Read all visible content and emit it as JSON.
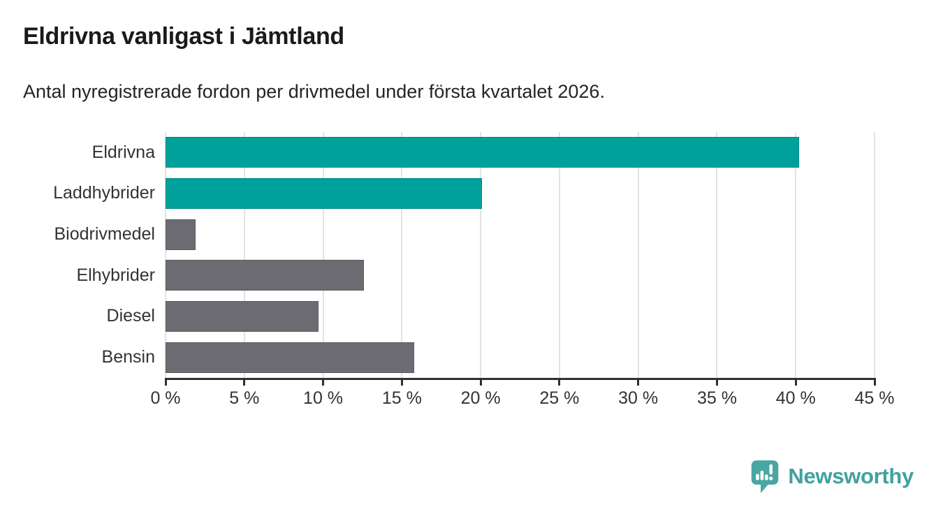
{
  "header": {
    "title": "Eldrivna vanligast i Jämtland",
    "subtitle": "Antal nyregistrerade fordon per drivmedel under första kvartalet 2026."
  },
  "chart_data": {
    "type": "bar",
    "orientation": "horizontal",
    "title": "Eldrivna vanligast i Jämtland",
    "subtitle": "Antal nyregistrerade fordon per drivmedel under första kvartalet 2026.",
    "categories": [
      "Eldrivna",
      "Laddhybrider",
      "Biodrivmedel",
      "Elhybrider",
      "Diesel",
      "Bensin"
    ],
    "values": [
      40.2,
      20.1,
      1.9,
      12.6,
      9.7,
      15.8
    ],
    "unit": "%",
    "bar_colors": [
      "#00a19a",
      "#00a19a",
      "#6c6b71",
      "#6c6b71",
      "#6c6b71",
      "#6c6b71"
    ],
    "highlight_color": "#00a19a",
    "default_color": "#6c6b71",
    "xlabel": "",
    "ylabel": "",
    "xlim": [
      0,
      45
    ],
    "x_ticks": [
      0,
      5,
      10,
      15,
      20,
      25,
      30,
      35,
      40,
      45
    ],
    "x_tick_labels": [
      "0 %",
      "5 %",
      "10 %",
      "15 %",
      "20 %",
      "25 %",
      "30 %",
      "35 %",
      "40 %",
      "45 %"
    ],
    "grid": "vertical-gridlines",
    "gridline_color": "#e3e3e3",
    "axis_color": "#2f2f2f",
    "legend": "none"
  },
  "footer": {
    "brand": "Newsworthy",
    "brand_color": "#40a19f",
    "icon": "newsworthy-speech-bubble-bar-chart-icon",
    "icon_color": "#4aa6a2"
  }
}
